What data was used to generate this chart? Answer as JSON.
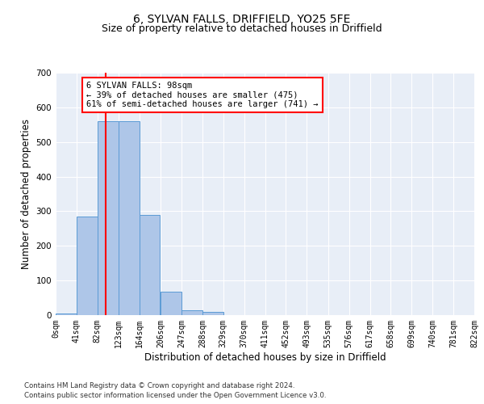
{
  "title1": "6, SYLVAN FALLS, DRIFFIELD, YO25 5FE",
  "title2": "Size of property relative to detached houses in Driffield",
  "xlabel": "Distribution of detached houses by size in Driffield",
  "ylabel": "Number of detached properties",
  "footer1": "Contains HM Land Registry data © Crown copyright and database right 2024.",
  "footer2": "Contains public sector information licensed under the Open Government Licence v3.0.",
  "bin_edges": [
    0,
    41,
    82,
    123,
    164,
    206,
    247,
    288,
    329,
    370,
    411,
    452,
    493,
    535,
    576,
    617,
    658,
    699,
    740,
    781,
    822
  ],
  "bin_labels": [
    "0sqm",
    "41sqm",
    "82sqm",
    "123sqm",
    "164sqm",
    "206sqm",
    "247sqm",
    "288sqm",
    "329sqm",
    "370sqm",
    "411sqm",
    "452sqm",
    "493sqm",
    "535sqm",
    "576sqm",
    "617sqm",
    "658sqm",
    "699sqm",
    "740sqm",
    "781sqm",
    "822sqm"
  ],
  "bar_heights": [
    5,
    285,
    560,
    560,
    290,
    68,
    15,
    10,
    0,
    0,
    0,
    0,
    0,
    0,
    0,
    0,
    0,
    0,
    0,
    0
  ],
  "bar_color": "#aec6e8",
  "bar_edge_color": "#5b9bd5",
  "red_line_x": 98,
  "ylim": [
    0,
    700
  ],
  "yticks": [
    0,
    100,
    200,
    300,
    400,
    500,
    600,
    700
  ],
  "annotation_text": "6 SYLVAN FALLS: 98sqm\n← 39% of detached houses are smaller (475)\n61% of semi-detached houses are larger (741) →",
  "annotation_box_color": "white",
  "annotation_box_edge": "red",
  "background_color": "#e8eef7",
  "grid_color": "white",
  "title_fontsize": 10,
  "subtitle_fontsize": 9,
  "axis_label_fontsize": 8.5,
  "tick_fontsize": 7,
  "annotation_fontsize": 7.5
}
